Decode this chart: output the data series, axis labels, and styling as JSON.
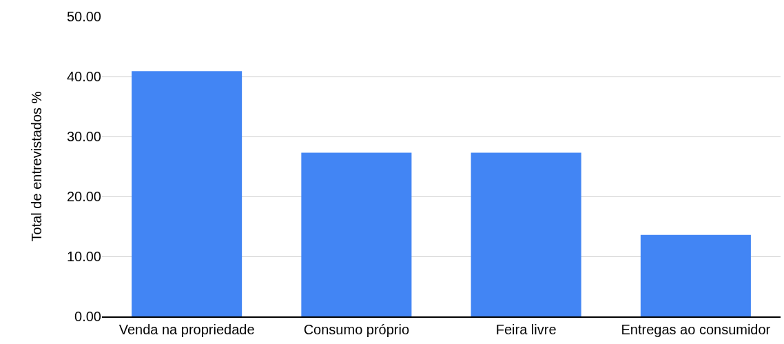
{
  "chart_data": {
    "type": "bar",
    "ylabel": "Total de entrevistados %",
    "categories": [
      "Venda na propriedade",
      "Consumo próprio",
      "Feira livre",
      "Entregas ao consumidor"
    ],
    "values": [
      40.9,
      27.3,
      27.3,
      13.6
    ],
    "color": "#4285f4",
    "ylim": [
      0,
      50
    ],
    "yticks": [
      {
        "value": 0,
        "label": "0.00"
      },
      {
        "value": 10,
        "label": "10.00"
      },
      {
        "value": 20,
        "label": "20.00"
      },
      {
        "value": 30,
        "label": "30.00"
      },
      {
        "value": 40,
        "label": "40.00"
      },
      {
        "value": 50,
        "label": "50.00"
      }
    ],
    "grid": "y"
  }
}
